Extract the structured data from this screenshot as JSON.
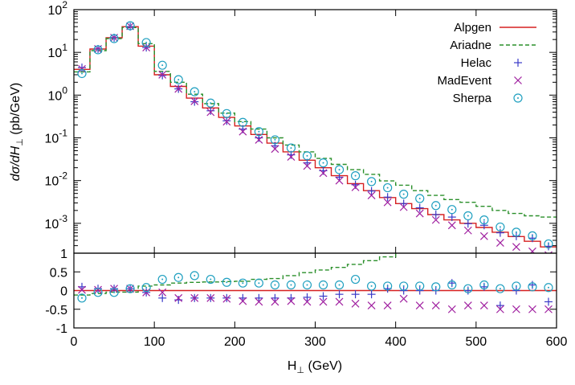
{
  "chart_data": {
    "type": "line",
    "layout": "two-panel",
    "x_ticks": [
      0,
      100,
      200,
      300,
      400,
      500,
      600
    ],
    "xlim": [
      0,
      600
    ],
    "x_bins": [
      10,
      30,
      50,
      70,
      90,
      110,
      130,
      150,
      170,
      190,
      210,
      230,
      250,
      270,
      290,
      310,
      330,
      350,
      370,
      390,
      410,
      430,
      450,
      470,
      490,
      510,
      530,
      550,
      570,
      590
    ],
    "xlabel_main": "H",
    "xlabel_sub": "⊥",
    "xlabel_unit": " (GeV)",
    "top_panel": {
      "ylabel_main": "dσ/dH",
      "ylabel_sub": "⊥",
      "ylabel_unit": " (pb/GeV)",
      "yscale": "log",
      "ylim": [
        0.0002,
        100
      ],
      "y_ticks": [
        {
          "value": 0.001,
          "base": "10",
          "exp": "-3"
        },
        {
          "value": 0.01,
          "base": "10",
          "exp": "-2"
        },
        {
          "value": 0.1,
          "base": "10",
          "exp": "-1"
        },
        {
          "value": 1,
          "base": "10",
          "exp": "0"
        },
        {
          "value": 10,
          "base": "10",
          "exp": "1"
        },
        {
          "value": 100,
          "base": "10",
          "exp": "2"
        }
      ],
      "legend_position": "top-right",
      "series": [
        {
          "name": "Alpgen",
          "style": "step-solid",
          "color": "#d62020",
          "values": [
            4,
            12,
            22,
            40,
            14,
            3.0,
            1.6,
            0.85,
            0.5,
            0.3,
            0.19,
            0.12,
            0.075,
            0.047,
            0.03,
            0.02,
            0.013,
            0.0085,
            0.0058,
            0.004,
            0.0029,
            0.0022,
            0.0016,
            0.0012,
            0.001,
            0.0008,
            0.00062,
            0.00049,
            0.00038,
            0.00028
          ]
        },
        {
          "name": "Ariadne",
          "style": "step-dashed",
          "color": "#2a8f2a",
          "values": [
            3.5,
            11,
            21,
            38,
            16,
            3.6,
            2.0,
            1.05,
            0.63,
            0.38,
            0.24,
            0.16,
            0.1,
            0.068,
            0.047,
            0.033,
            0.024,
            0.018,
            0.014,
            0.0098,
            0.0078,
            0.0058,
            0.0045,
            0.0036,
            0.0031,
            0.0025,
            0.002,
            0.0017,
            0.0015,
            0.0014
          ]
        },
        {
          "name": "Helac",
          "style": "plus",
          "color": "#3a3ac8",
          "values": [
            4.4,
            12,
            22,
            40,
            13,
            2.9,
            1.4,
            0.7,
            0.43,
            0.25,
            0.16,
            0.1,
            0.065,
            0.04,
            0.026,
            0.017,
            0.012,
            0.008,
            0.0057,
            0.0041,
            0.0029,
            0.0023,
            0.0016,
            0.0014,
            0.00098,
            0.0009,
            0.0006,
            0.0005,
            0.00045,
            0.00029
          ]
        },
        {
          "name": "MadEvent",
          "style": "cross",
          "color": "#a020a0",
          "values": [
            4.1,
            12,
            22,
            41,
            13,
            3.0,
            1.4,
            0.72,
            0.4,
            0.24,
            0.14,
            0.09,
            0.055,
            0.036,
            0.022,
            0.015,
            0.01,
            0.007,
            0.0045,
            0.0031,
            0.0024,
            0.0017,
            0.0012,
            0.0009,
            0.00068,
            0.0005,
            0.00035,
            0.00028,
            0.00022,
            0.00018
          ]
        },
        {
          "name": "Sherpa",
          "style": "circle-dot",
          "color": "#20a0c0",
          "values": [
            3.2,
            11.5,
            21,
            42,
            17,
            5.0,
            2.3,
            1.2,
            0.65,
            0.37,
            0.23,
            0.14,
            0.09,
            0.058,
            0.038,
            0.026,
            0.018,
            0.013,
            0.0095,
            0.0068,
            0.0048,
            0.0038,
            0.0026,
            0.0021,
            0.0015,
            0.0012,
            0.00082,
            0.00062,
            0.00051,
            0.00033
          ]
        }
      ]
    },
    "bottom_panel": {
      "ylim": [
        -1,
        1
      ],
      "y_ticks": [
        {
          "value": 1,
          "label": "1"
        },
        {
          "value": 0.5,
          "label": "0.5"
        },
        {
          "value": 0,
          "label": "0"
        },
        {
          "value": -0.5,
          "label": "-0.5"
        },
        {
          "value": -1,
          "label": "-1"
        }
      ],
      "series": [
        {
          "name": "Alpgen",
          "style": "step-solid",
          "color": "#d62020",
          "values": [
            0,
            0,
            0,
            0,
            0,
            0,
            0,
            0,
            0,
            0,
            0,
            0,
            0,
            0,
            0,
            0,
            0,
            0,
            0,
            0,
            0,
            0,
            0,
            0,
            0,
            0,
            0,
            0,
            0,
            0
          ]
        },
        {
          "name": "Ariadne",
          "style": "step-dashed",
          "color": "#2a8f2a",
          "values": [
            -0.12,
            -0.08,
            -0.04,
            -0.04,
            0.12,
            0.15,
            0.2,
            0.22,
            0.23,
            0.24,
            0.25,
            0.3,
            0.32,
            0.4,
            0.48,
            0.55,
            0.62,
            0.7,
            0.8,
            0.9,
            1.1,
            1.3,
            1.5,
            1.7,
            1.9,
            2.1,
            2.3,
            2.5,
            2.7,
            3.0
          ]
        },
        {
          "name": "Helac",
          "style": "plus",
          "color": "#3a3ac8",
          "values": [
            0.1,
            0.05,
            0.05,
            0.05,
            -0.05,
            -0.2,
            -0.25,
            -0.2,
            -0.2,
            -0.2,
            -0.2,
            -0.2,
            -0.2,
            -0.2,
            -0.18,
            -0.15,
            -0.1,
            -0.1,
            -0.1,
            0.05,
            0.0,
            0.0,
            0.0,
            0.2,
            0.0,
            0.1,
            -0.4,
            0.0,
            0.15,
            -0.3
          ]
        },
        {
          "name": "MadEvent",
          "style": "cross",
          "color": "#a020a0",
          "values": [
            0.02,
            0.02,
            0.05,
            0.05,
            -0.05,
            -0.05,
            -0.2,
            -0.2,
            -0.2,
            -0.22,
            -0.28,
            -0.3,
            -0.3,
            -0.28,
            -0.3,
            -0.3,
            -0.3,
            -0.35,
            -0.4,
            -0.4,
            -0.22,
            -0.4,
            -0.4,
            -0.5,
            -0.4,
            -0.4,
            -0.5,
            -0.5,
            -0.5,
            -0.5
          ]
        },
        {
          "name": "Sherpa",
          "style": "circle-dot",
          "color": "#20a0c0",
          "values": [
            -0.2,
            -0.05,
            -0.05,
            0.05,
            0.08,
            0.3,
            0.35,
            0.4,
            0.3,
            0.22,
            0.2,
            0.2,
            0.15,
            0.15,
            0.15,
            0.15,
            0.15,
            0.3,
            0.12,
            0.12,
            0.12,
            0.12,
            0.1,
            0.15,
            0.05,
            0.15,
            0.05,
            0.12,
            0.1,
            0.08
          ]
        }
      ]
    }
  }
}
